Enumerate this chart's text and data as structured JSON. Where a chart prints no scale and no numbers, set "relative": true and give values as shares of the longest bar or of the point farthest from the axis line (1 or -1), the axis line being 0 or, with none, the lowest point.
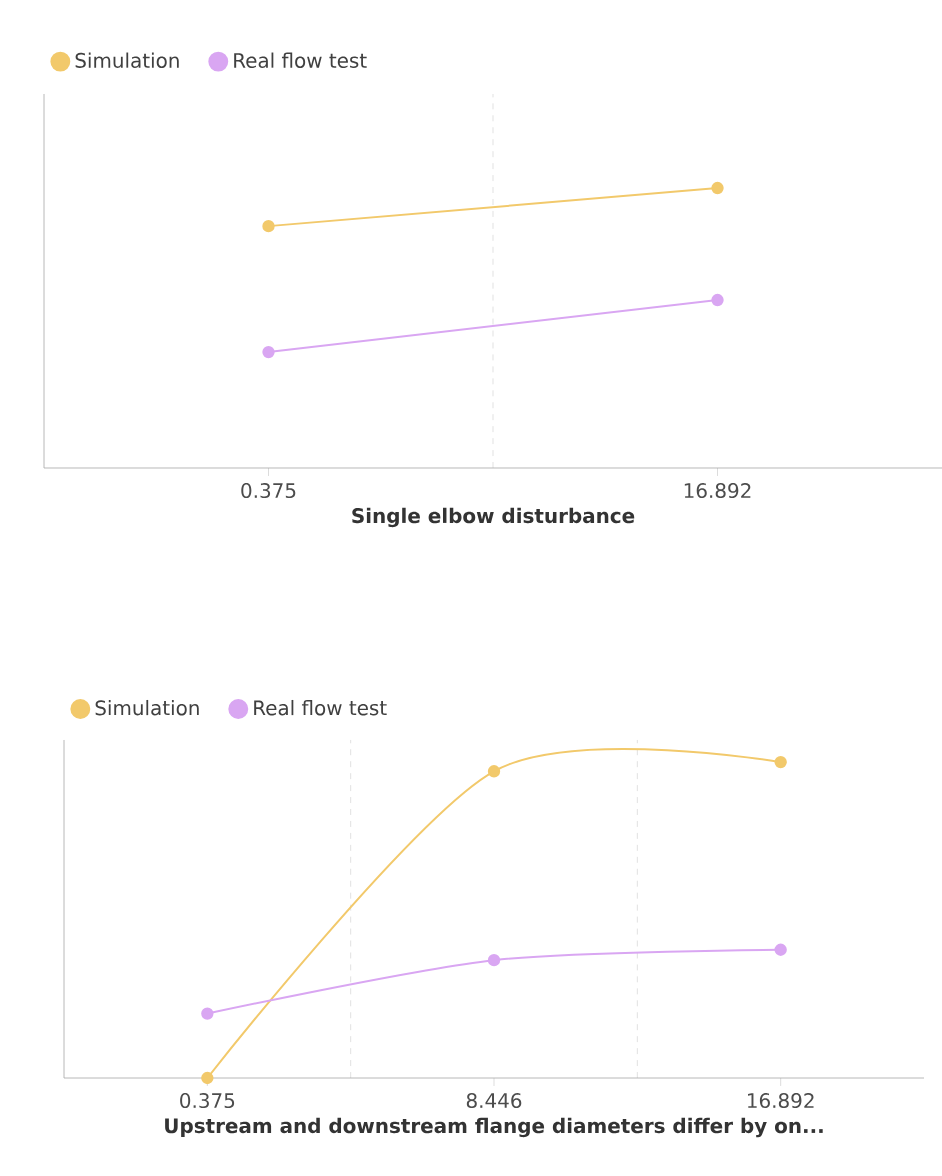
{
  "chart_data": [
    {
      "type": "line",
      "relative": true,
      "categories": [
        "0.375",
        "16.892"
      ],
      "xlabel": "Single elbow disturbance",
      "legend": "top left",
      "marker": "circle",
      "grid": "x",
      "series": [
        {
          "name": "Simulation",
          "color": "#f2c96b",
          "values": [
            0.864,
            1
          ]
        },
        {
          "name": "Real flow test",
          "color": "#d9a6f2",
          "values": [
            0.414,
            0.6
          ]
        }
      ]
    },
    {
      "type": "line",
      "relative": true,
      "categories": [
        "0.375",
        "8.446",
        "16.892"
      ],
      "xlabel": "Upstream and downstream flange diameters differ by on...",
      "legend": "top left",
      "marker": "circle",
      "grid": "x",
      "series": [
        {
          "name": "Simulation",
          "color": "#f2c96b",
          "values": [
            0,
            0.971,
            1
          ]
        },
        {
          "name": "Real flow test",
          "color": "#d9a6f2",
          "values": [
            0.204,
            0.373,
            0.406
          ]
        }
      ]
    }
  ]
}
